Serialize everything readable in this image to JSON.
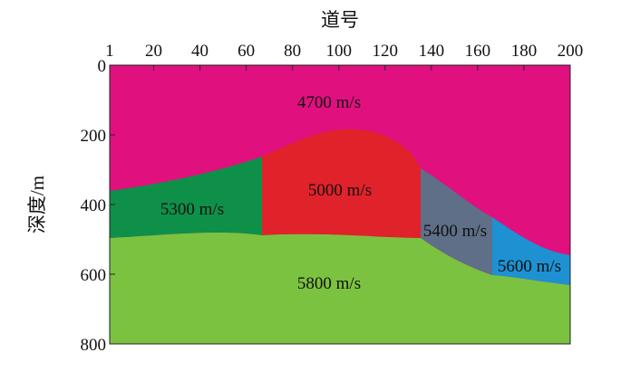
{
  "figure": {
    "x_axis_title": "道号",
    "y_axis_title": "深度/m"
  },
  "x_axis": {
    "position": "top",
    "range": [
      1,
      200
    ],
    "ticks": [
      1,
      20,
      40,
      60,
      80,
      100,
      120,
      140,
      160,
      180,
      200
    ]
  },
  "y_axis": {
    "inverted": true,
    "range": [
      0,
      800
    ],
    "ticks": [
      0,
      200,
      400,
      600,
      800
    ]
  },
  "layers": [
    {
      "label": "4700 m/s",
      "color": "#E0107F"
    },
    {
      "label": "5300 m/s",
      "color": "#0E9048"
    },
    {
      "label": "5000 m/s",
      "color": "#E0222B"
    },
    {
      "label": "5400 m/s",
      "color": "#5E6F87"
    },
    {
      "label": "5600 m/s",
      "color": "#1E91D3"
    },
    {
      "label": "5800 m/s",
      "color": "#7CC241"
    }
  ]
}
